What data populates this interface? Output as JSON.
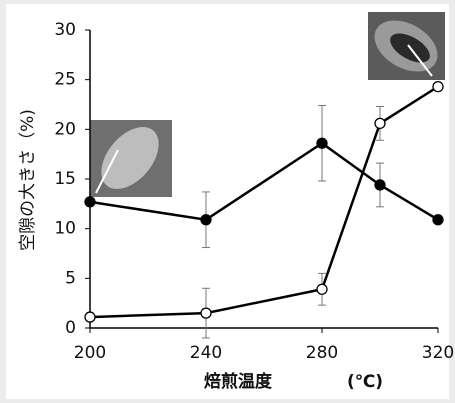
{
  "chart_data": {
    "type": "line",
    "x": [
      200,
      240,
      280,
      300,
      320
    ],
    "series": [
      {
        "color": "#000000",
        "marker": "filled",
        "values": [
          12.7,
          10.9,
          18.6,
          14.4,
          10.9
        ],
        "errors": [
          null,
          2.8,
          3.8,
          2.2,
          null
        ]
      },
      {
        "color": "#000000",
        "marker": "open",
        "values": [
          1.1,
          1.5,
          3.9,
          20.6,
          24.3
        ],
        "errors": [
          null,
          2.5,
          1.6,
          1.7,
          null
        ]
      }
    ],
    "xlim": [
      200,
      320
    ],
    "xticks": [
      200,
      240,
      280,
      320
    ],
    "ylim": [
      0,
      30
    ],
    "yticks": [
      0,
      5,
      10,
      15,
      20,
      25,
      30
    ],
    "ylabel": "空隙の大きさ（%)",
    "xlabel": "焙煎温度",
    "xunit": "(℃)"
  }
}
